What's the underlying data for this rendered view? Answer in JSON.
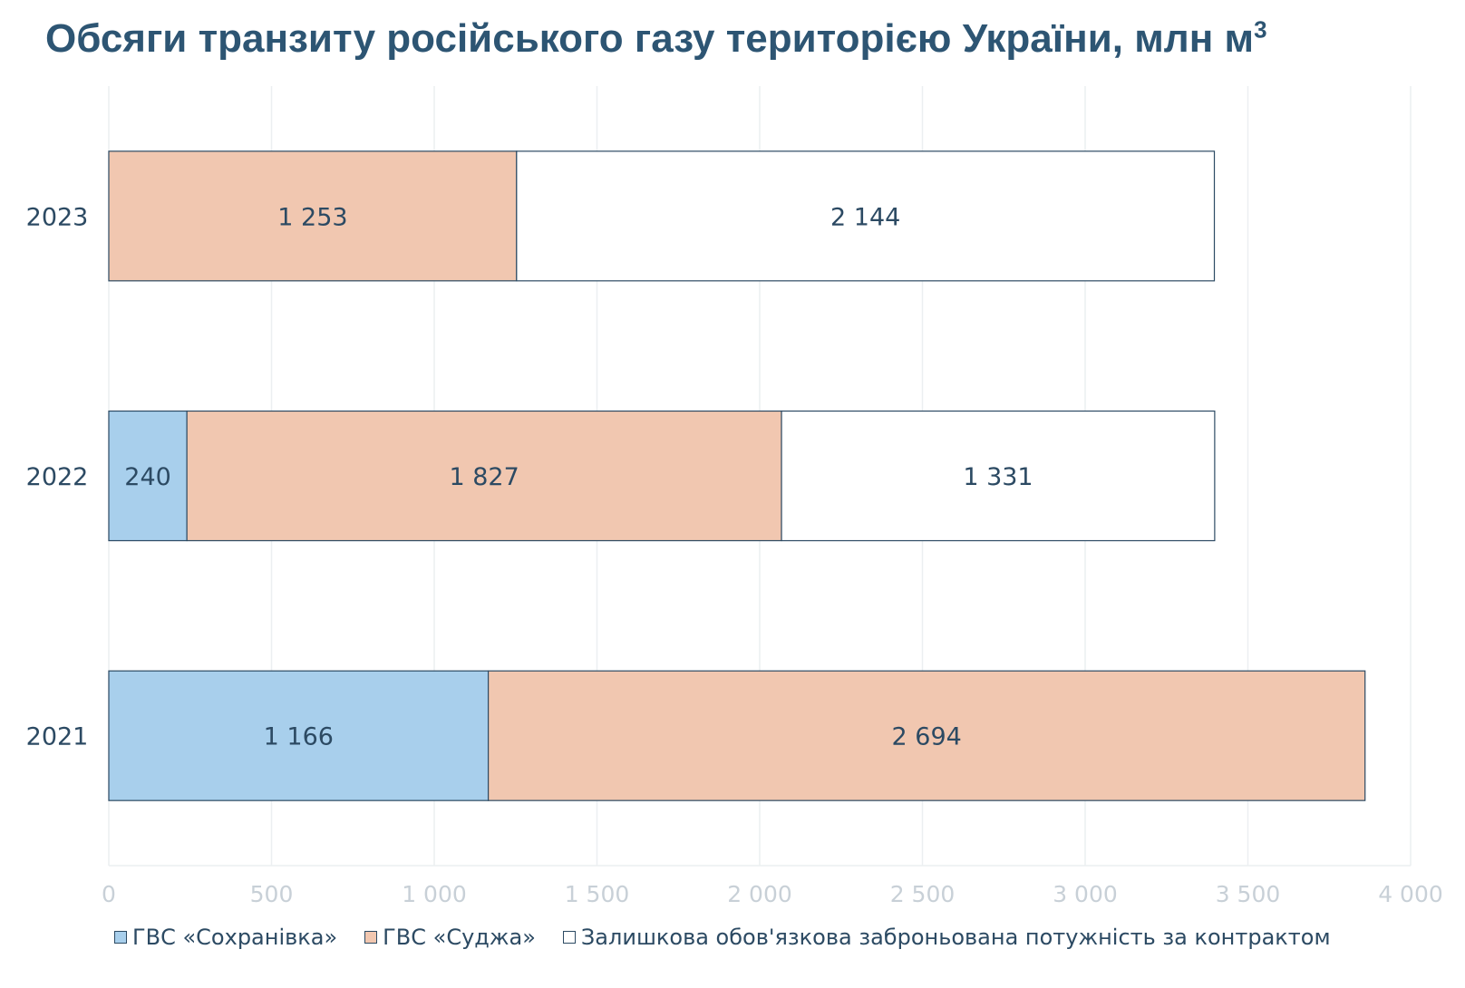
{
  "chart_data": {
    "type": "bar",
    "orientation": "horizontal",
    "stacked": true,
    "title": "Обсяги транзиту російського газу територією України, млн м",
    "title_superscript": "3",
    "categories": [
      "2023",
      "2022",
      "2021"
    ],
    "series": [
      {
        "name": "ГВС «Сохранівка»",
        "color": "#a8cfec",
        "values": [
          0,
          240,
          1166
        ],
        "labels": [
          "",
          "240",
          "1 166"
        ]
      },
      {
        "name": "ГВС «Суджа»",
        "color": "#f1c7b0",
        "values": [
          1253,
          1827,
          2694
        ],
        "labels": [
          "1 253",
          "1 827",
          "2 694"
        ]
      },
      {
        "name": "Залишкова обов'язкова заброньована потужність за контрактом",
        "color": "#ffffff",
        "values": [
          2144,
          1331,
          0
        ],
        "labels": [
          "2 144",
          "1 331",
          ""
        ]
      }
    ],
    "xlim": [
      0,
      4000
    ],
    "xticks": [
      0,
      500,
      1000,
      1500,
      2000,
      2500,
      3000,
      3500,
      4000
    ],
    "xtick_labels": [
      "0",
      "500",
      "1 000",
      "1 500",
      "2 000",
      "2 500",
      "3 000",
      "3 500",
      "4 000"
    ],
    "grid": true,
    "legend_position": "bottom"
  }
}
